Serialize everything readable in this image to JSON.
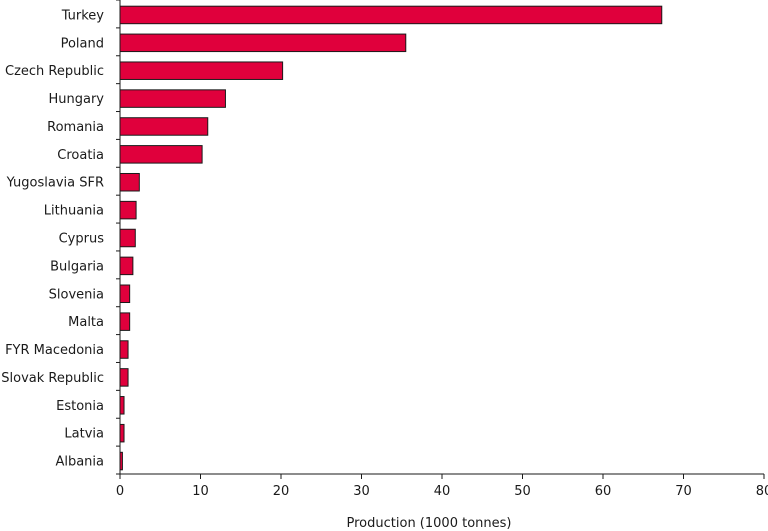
{
  "chart_data": {
    "type": "bar",
    "orientation": "horizontal",
    "categories": [
      "Turkey",
      "Poland",
      "Czech Republic",
      "Hungary",
      "Romania",
      "Croatia",
      "Yugoslavia SFR",
      "Lithuania",
      "Cyprus",
      "Bulgaria",
      "Slovenia",
      "Malta",
      "FYR Macedonia",
      "Slovak Republic",
      "Estonia",
      "Latvia",
      "Albania"
    ],
    "values": [
      67.3,
      35.5,
      20.2,
      13.1,
      10.9,
      10.2,
      2.4,
      2.0,
      1.9,
      1.6,
      1.2,
      1.2,
      1.0,
      1.0,
      0.5,
      0.5,
      0.3
    ],
    "title": "",
    "xlabel": "Production (1000 tonnes)",
    "ylabel": "",
    "xlim": [
      0,
      80
    ],
    "xticks": [
      0,
      10,
      20,
      30,
      40,
      50,
      60,
      70,
      80
    ],
    "grid": false,
    "bar_color": "#e0003c",
    "bar_edge_color": "#1a1a1a"
  }
}
